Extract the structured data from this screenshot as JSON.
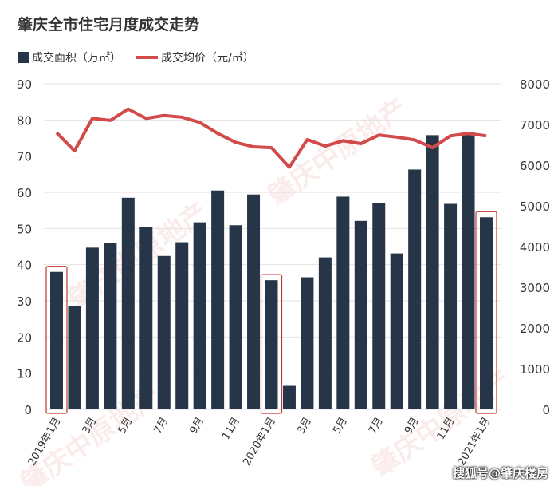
{
  "chart_data": {
    "type": "bar+line",
    "title": "肇庆全市住宅月度成交走势",
    "categories": [
      "2019年1月",
      "2月",
      "3月",
      "4月",
      "5月",
      "6月",
      "7月",
      "8月",
      "9月",
      "10月",
      "11月",
      "12月",
      "2020年1月",
      "2月",
      "3月",
      "4月",
      "5月",
      "6月",
      "7月",
      "8月",
      "9月",
      "10月",
      "11月",
      "12月",
      "2021年1月"
    ],
    "tick_labels": [
      "2019年1月",
      "",
      "3月",
      "",
      "5月",
      "",
      "7月",
      "",
      "9月",
      "",
      "11月",
      "",
      "2020年1月",
      "",
      "3月",
      "",
      "5月",
      "",
      "7月",
      "",
      "9月",
      "",
      "11月",
      "",
      "2021年1月"
    ],
    "series": [
      {
        "name": "成交面积（万㎡）",
        "type": "bar",
        "axis": "left",
        "color": "#263548",
        "values": [
          38.0,
          28.6,
          44.7,
          46.0,
          58.5,
          50.3,
          42.4,
          46.2,
          51.7,
          60.5,
          50.9,
          59.4,
          35.7,
          6.5,
          36.5,
          42.0,
          58.8,
          52.1,
          57.0,
          43.1,
          66.3,
          75.8,
          56.8,
          76.5,
          53.1
        ]
      },
      {
        "name": "成交均价（元/㎡）",
        "type": "line",
        "axis": "right",
        "color": "#d24a4a",
        "values": [
          6800,
          6350,
          7150,
          7100,
          7380,
          7150,
          7220,
          7180,
          7050,
          6780,
          6560,
          6450,
          6430,
          5950,
          6630,
          6470,
          6600,
          6530,
          6740,
          6690,
          6620,
          6430,
          6720,
          6780,
          6720
        ]
      }
    ],
    "y_left": {
      "range": [
        0,
        90
      ],
      "ticks": [
        "0",
        "10",
        "20",
        "30",
        "40",
        "50",
        "60",
        "70",
        "80",
        "90"
      ]
    },
    "y_right": {
      "range": [
        0,
        8000
      ],
      "ticks": [
        "0",
        "1000",
        "2000",
        "3000",
        "4000",
        "5000",
        "6000",
        "7000",
        "8000"
      ]
    },
    "grid": true,
    "legend": "top-left",
    "highlighted_categories": [
      "2019年1月",
      "2020年1月",
      "2021年1月"
    ],
    "highlight_color": "#c0392b"
  },
  "watermark": "肇庆中原地产",
  "footer": "搜狐号@肇庆楼房"
}
